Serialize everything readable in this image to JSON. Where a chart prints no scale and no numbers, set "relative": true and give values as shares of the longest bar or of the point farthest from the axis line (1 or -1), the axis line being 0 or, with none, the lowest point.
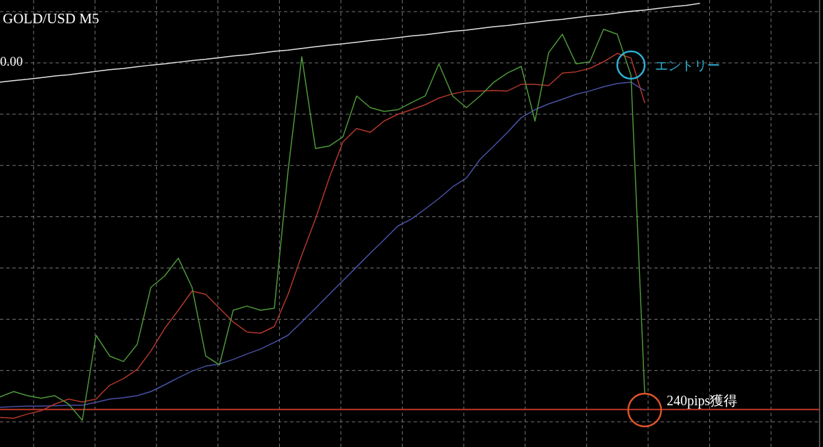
{
  "chart_data": {
    "type": "line",
    "relative": true,
    "title": "GOLD/USD M5",
    "grid": true,
    "categories": [
      null,
      null,
      null,
      null,
      null,
      null,
      null,
      null,
      null,
      null,
      null,
      null,
      null,
      null,
      null,
      null,
      null,
      null,
      null,
      null,
      null,
      null,
      null,
      null,
      null,
      null,
      null,
      null,
      null,
      null,
      null,
      null,
      null,
      null,
      null,
      null,
      null,
      null,
      null,
      null,
      null,
      null,
      null,
      null,
      null,
      null,
      null,
      null,
      null,
      null,
      null,
      null,
      null,
      null,
      null,
      null,
      null,
      null,
      null,
      null,
      null
    ],
    "series": [
      {
        "color": "#e6e6e6",
        "values": [
          0.811,
          0.815,
          0.818,
          0.822,
          0.826,
          0.829,
          0.833,
          0.837,
          0.841,
          0.844,
          0.848,
          0.852,
          0.855,
          0.859,
          0.863,
          0.866,
          0.87,
          0.874,
          0.877,
          0.881,
          0.885,
          0.888,
          0.892,
          0.896,
          0.9,
          0.903,
          0.907,
          0.911,
          0.914,
          0.918,
          0.922,
          0.925,
          0.929,
          0.933,
          0.936,
          0.94,
          0.944,
          0.947,
          0.951,
          0.955,
          0.959,
          0.962,
          0.966,
          0.97,
          0.973,
          0.977,
          0.981,
          0.984,
          0.988,
          0.992,
          0.995,
          1.0,
          null,
          null,
          null,
          null,
          null,
          null,
          null,
          null,
          null
        ]
      },
      {
        "color": "#4b52a8",
        "values": [
          0.031,
          0.033,
          0.034,
          0.034,
          0.035,
          0.036,
          0.036,
          0.043,
          0.051,
          0.054,
          0.059,
          0.069,
          0.085,
          0.102,
          0.118,
          0.13,
          0.135,
          0.146,
          0.159,
          0.171,
          0.187,
          0.204,
          0.236,
          0.269,
          0.302,
          0.335,
          0.368,
          0.401,
          0.433,
          0.466,
          0.483,
          0.507,
          0.532,
          0.56,
          0.581,
          0.626,
          0.658,
          0.691,
          0.726,
          0.745,
          0.759,
          0.77,
          0.782,
          0.79,
          0.8,
          0.808,
          0.811,
          0.791,
          null,
          null,
          null,
          null,
          null,
          null,
          null,
          null,
          null,
          null,
          null,
          null,
          null
        ]
      },
      {
        "color": "#b5382c",
        "values": [
          0.007,
          0.005,
          0.015,
          0.023,
          0.039,
          0.051,
          0.044,
          0.051,
          0.084,
          0.1,
          0.122,
          0.166,
          0.22,
          0.264,
          0.31,
          0.302,
          0.269,
          0.236,
          0.212,
          0.209,
          0.225,
          0.302,
          0.396,
          0.483,
          0.581,
          0.668,
          0.7,
          0.691,
          0.718,
          0.734,
          0.745,
          0.757,
          0.773,
          0.783,
          0.79,
          0.79,
          0.791,
          0.79,
          0.806,
          0.806,
          0.803,
          0.833,
          0.836,
          0.844,
          0.86,
          0.88,
          0.869,
          0.762,
          null,
          null,
          null,
          null,
          null,
          null,
          null,
          null,
          null,
          null,
          null,
          null,
          null
        ]
      },
      {
        "color": "#4e9a3a",
        "values": [
          0.056,
          0.069,
          0.059,
          0.053,
          0.059,
          0.039,
          0.0,
          0.204,
          0.154,
          0.141,
          0.182,
          0.319,
          0.346,
          0.389,
          0.319,
          0.154,
          0.133,
          0.264,
          0.274,
          0.264,
          0.269,
          0.598,
          0.872,
          0.652,
          0.658,
          0.68,
          0.778,
          0.75,
          0.741,
          0.745,
          0.762,
          0.778,
          0.855,
          0.778,
          0.75,
          0.778,
          0.811,
          0.833,
          0.849,
          0.718,
          0.882,
          0.926,
          0.855,
          0.86,
          0.938,
          0.926,
          0.828,
          0.064,
          null,
          null,
          null,
          null,
          null,
          null,
          null,
          null,
          null,
          null,
          null,
          null,
          null
        ]
      }
    ],
    "ref_lines": [
      {
        "axis": "y",
        "value": 0.026,
        "color": "#c0392b"
      }
    ],
    "annotations": [
      "0.00",
      "エントリー",
      "240pips獲得"
    ]
  }
}
